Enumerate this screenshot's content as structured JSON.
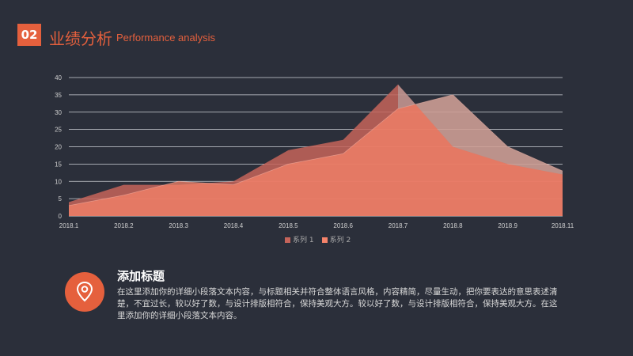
{
  "header": {
    "number": "02",
    "title_cn": "业绩分析",
    "title_en": "Performance analysis"
  },
  "colors": {
    "background": "#2b2f3a",
    "accent": "#e5603d",
    "series1": "#c5645a",
    "series2": "#f5836a"
  },
  "chart_data": {
    "type": "area",
    "categories": [
      "2018.1",
      "2018.2",
      "2018.3",
      "2018.4",
      "2018.5",
      "2018.6",
      "2018.7",
      "2018.8",
      "2018.9",
      "2018.11"
    ],
    "series": [
      {
        "name": "系列 1",
        "values": [
          4,
          9,
          9,
          10,
          19,
          22,
          38,
          20,
          15,
          12
        ]
      },
      {
        "name": "系列 2",
        "values": [
          3,
          6,
          10,
          9,
          15,
          18,
          31,
          35,
          20,
          13
        ]
      }
    ],
    "ylim": [
      0,
      40
    ],
    "yticks": [
      0,
      5,
      10,
      15,
      20,
      25,
      30,
      35,
      40
    ],
    "grid": true,
    "legend_position": "bottom"
  },
  "section": {
    "icon": "location-pin-icon",
    "title": "添加标题",
    "text": "在这里添加你的详细小段落文本内容，与标题相关并符合整体语言风格，内容精简，尽量生动，把你要表达的意思表述清楚，不宜过长，较以好了数，与设计排版相符合，保持美观大方。较以好了数，与设计排版相符合，保持美观大方。在这里添加你的详细小段落文本内容。"
  }
}
